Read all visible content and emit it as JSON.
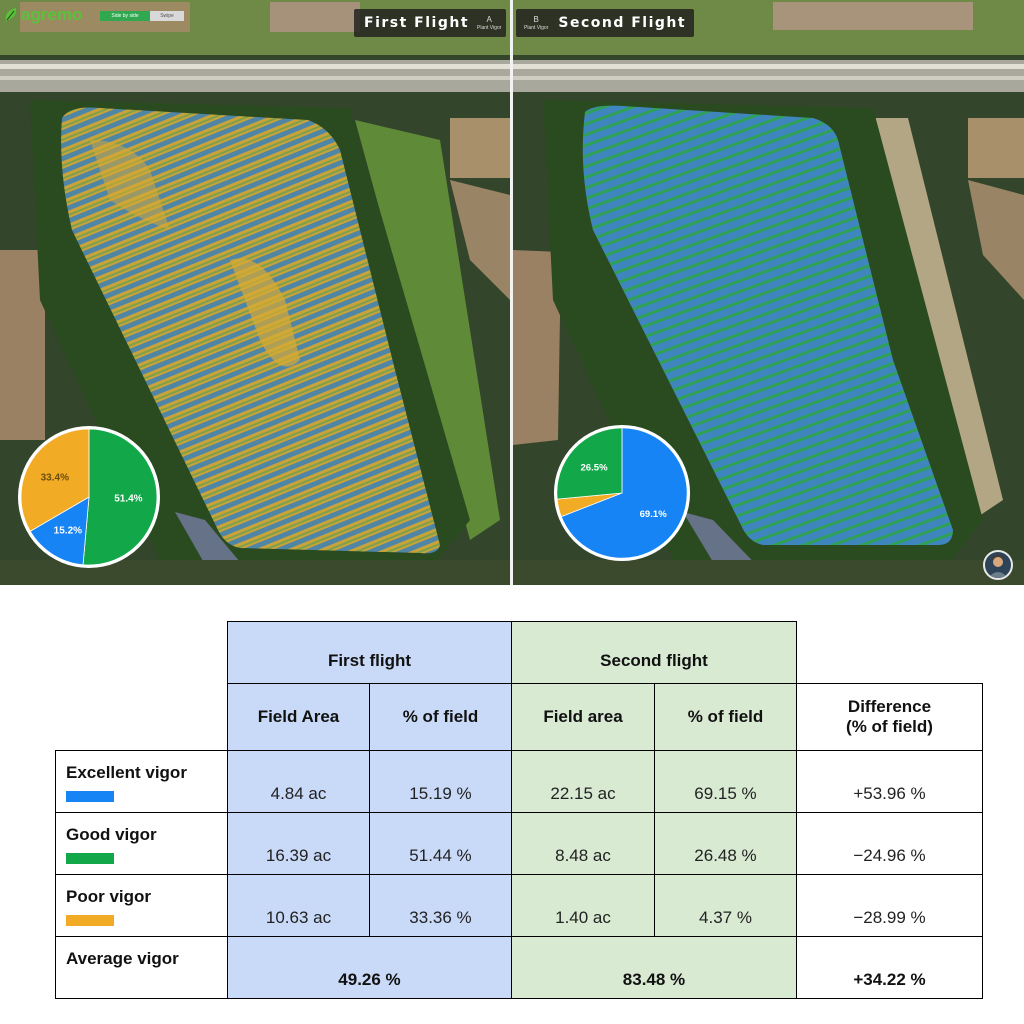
{
  "app": {
    "brand": "agremo",
    "view_toggle": {
      "side_by_side": "Side by side",
      "swipe": "Swipe"
    }
  },
  "maps": {
    "first": {
      "title": "First Flight",
      "letter": "A",
      "layer": "Plant Vigor",
      "pie": [
        {
          "label": "Good",
          "value": 51.4,
          "display": "51.4%",
          "color": "#12a84a"
        },
        {
          "label": "Excellent",
          "value": 15.2,
          "display": "15.2%",
          "color": "#1684f5"
        },
        {
          "label": "Poor",
          "value": 33.4,
          "display": "33.4%",
          "color": "#f2ab24"
        }
      ]
    },
    "second": {
      "title": "Second Flight",
      "letter": "B",
      "layer": "Plant Vigor",
      "pie": [
        {
          "label": "Excellent",
          "value": 69.1,
          "display": "69.1%",
          "color": "#1684f5"
        },
        {
          "label": "Poor",
          "value": 4.4,
          "display": "",
          "color": "#f2ab24"
        },
        {
          "label": "Good",
          "value": 26.5,
          "display": "26.5%",
          "color": "#12a84a"
        }
      ]
    }
  },
  "colors": {
    "excellent": "#1684f5",
    "good": "#12a84a",
    "poor": "#f2ab24",
    "first_flight_bg": "#c9daf8",
    "second_flight_bg": "#d9ead3"
  },
  "table": {
    "group_headers": {
      "first": "First flight",
      "second": "Second flight"
    },
    "col_headers": {
      "ff_area": "Field Area",
      "ff_pct": "% of field",
      "sf_area": "Field area",
      "sf_pct": "% of field",
      "diff": "Difference\n(% of field)"
    },
    "rows": [
      {
        "label": "Excellent vigor",
        "ff_area": "4.84 ac",
        "ff_pct": "15.19 %",
        "sf_area": "22.15 ac",
        "sf_pct": "69.15 %",
        "diff": "+53.96 %"
      },
      {
        "label": "Good vigor",
        "ff_area": "16.39 ac",
        "ff_pct": "51.44 %",
        "sf_area": "8.48 ac",
        "sf_pct": "26.48 %",
        "diff": "−24.96 %"
      },
      {
        "label": "Poor vigor",
        "ff_area": "10.63 ac",
        "ff_pct": "33.36 %",
        "sf_area": "1.40 ac",
        "sf_pct": "4.37 %",
        "diff": "−28.99 %"
      }
    ],
    "average": {
      "label": "Average vigor",
      "first": "49.26 %",
      "second": "83.48 %",
      "diff": "+34.22 %"
    }
  }
}
